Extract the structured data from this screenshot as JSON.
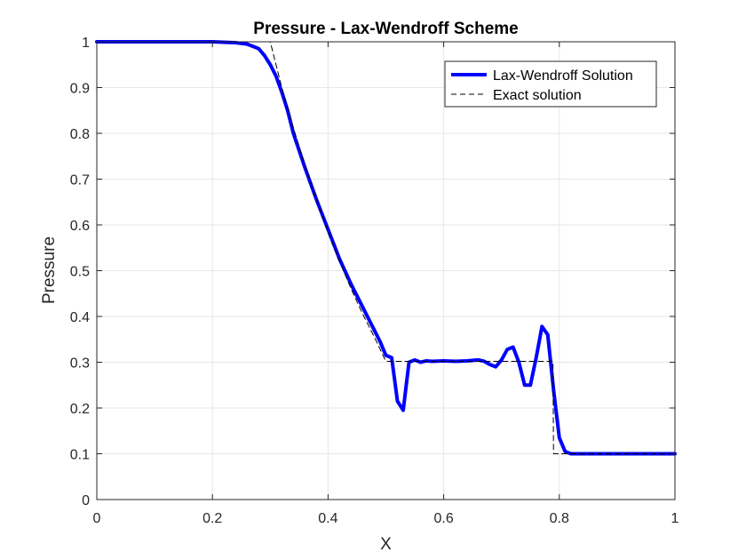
{
  "chart_data": {
    "type": "line",
    "title": "Pressure - Lax-Wendroff Scheme",
    "xlabel": "X",
    "ylabel": "Pressure",
    "xlim": [
      0,
      1
    ],
    "ylim": [
      0,
      1
    ],
    "x_ticks": [
      0,
      0.2,
      0.4,
      0.6,
      0.8,
      1
    ],
    "x_tick_labels": [
      "0",
      "0.2",
      "0.4",
      "0.6",
      "0.8",
      "1"
    ],
    "y_ticks": [
      0,
      0.1,
      0.2,
      0.3,
      0.4,
      0.5,
      0.6,
      0.7,
      0.8,
      0.9,
      1
    ],
    "y_tick_labels": [
      "0",
      "0.1",
      "0.2",
      "0.3",
      "0.4",
      "0.5",
      "0.6",
      "0.7",
      "0.8",
      "0.9",
      "1"
    ],
    "grid": true,
    "legend_position": "top-right",
    "series": [
      {
        "name": "Lax-Wendroff Solution",
        "color": "#0000ff",
        "style": "solid",
        "x": [
          0,
          0.05,
          0.1,
          0.15,
          0.2,
          0.24,
          0.26,
          0.27,
          0.28,
          0.29,
          0.3,
          0.31,
          0.32,
          0.33,
          0.34,
          0.36,
          0.38,
          0.4,
          0.42,
          0.44,
          0.46,
          0.48,
          0.49,
          0.5,
          0.51,
          0.52,
          0.53,
          0.54,
          0.55,
          0.56,
          0.57,
          0.58,
          0.6,
          0.62,
          0.64,
          0.66,
          0.67,
          0.68,
          0.69,
          0.7,
          0.71,
          0.72,
          0.73,
          0.74,
          0.75,
          0.76,
          0.77,
          0.78,
          0.79,
          0.8,
          0.81,
          0.82,
          0.84,
          0.88,
          0.92,
          0.96,
          1.0
        ],
        "y": [
          1.0,
          1.0,
          1.0,
          1.0,
          1.0,
          0.998,
          0.995,
          0.99,
          0.985,
          0.97,
          0.95,
          0.925,
          0.89,
          0.85,
          0.8,
          0.725,
          0.655,
          0.59,
          0.525,
          0.47,
          0.42,
          0.37,
          0.345,
          0.315,
          0.31,
          0.215,
          0.195,
          0.3,
          0.305,
          0.3,
          0.303,
          0.302,
          0.303,
          0.302,
          0.303,
          0.305,
          0.302,
          0.295,
          0.29,
          0.305,
          0.328,
          0.333,
          0.3,
          0.25,
          0.25,
          0.31,
          0.378,
          0.36,
          0.24,
          0.135,
          0.105,
          0.1,
          0.1,
          0.1,
          0.1,
          0.1,
          0.1
        ]
      },
      {
        "name": "Exact solution",
        "color": "#000000",
        "style": "dashed",
        "x": [
          0,
          0.3,
          0.32,
          0.34,
          0.36,
          0.38,
          0.4,
          0.42,
          0.44,
          0.46,
          0.48,
          0.5,
          0.55,
          0.6,
          0.65,
          0.7,
          0.75,
          0.78,
          0.789,
          0.79,
          0.8,
          0.85,
          0.9,
          0.95,
          1.0
        ],
        "y": [
          1.0,
          1.0,
          0.9,
          0.812,
          0.73,
          0.655,
          0.585,
          0.52,
          0.46,
          0.405,
          0.355,
          0.302,
          0.302,
          0.302,
          0.302,
          0.302,
          0.302,
          0.302,
          0.302,
          0.1,
          0.1,
          0.1,
          0.1,
          0.1,
          0.1
        ]
      }
    ]
  }
}
